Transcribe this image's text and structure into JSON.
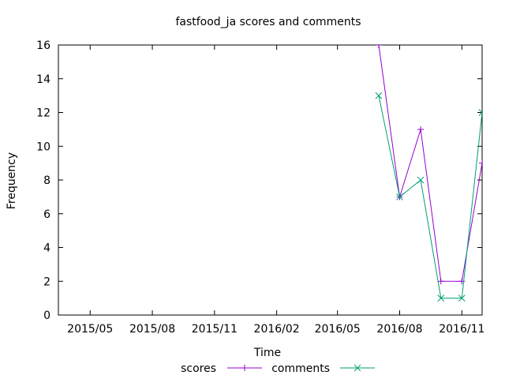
{
  "chart_data": {
    "type": "line",
    "title": "fastfood_ja scores and comments",
    "xlabel": "Time",
    "ylabel": "Frequency",
    "xlim": [
      "2015-03-15",
      "2016-12-01"
    ],
    "ylim": [
      0,
      16
    ],
    "x_tick_labels": [
      "2015/05",
      "2015/08",
      "2015/11",
      "2016/02",
      "2016/05",
      "2016/08",
      "2016/11"
    ],
    "x_tick_dates": [
      "2015-05-01",
      "2015-08-01",
      "2015-11-01",
      "2016-02-01",
      "2016-05-01",
      "2016-08-01",
      "2016-11-01"
    ],
    "y_ticks": [
      0,
      2,
      4,
      6,
      8,
      10,
      12,
      14,
      16
    ],
    "grid": false,
    "legend_position": "bottom",
    "series": [
      {
        "name": "scores",
        "color": "#9400d3",
        "marker": "plus",
        "points": [
          {
            "x": "2016-07-01",
            "y": 16
          },
          {
            "x": "2016-08-01",
            "y": 7
          },
          {
            "x": "2016-09-01",
            "y": 11
          },
          {
            "x": "2016-10-01",
            "y": 2
          },
          {
            "x": "2016-11-01",
            "y": 2
          },
          {
            "x": "2016-12-01",
            "y": 9
          }
        ]
      },
      {
        "name": "comments",
        "color": "#009e73",
        "marker": "x",
        "points": [
          {
            "x": "2016-07-01",
            "y": 13
          },
          {
            "x": "2016-08-01",
            "y": 7
          },
          {
            "x": "2016-09-01",
            "y": 8
          },
          {
            "x": "2016-10-01",
            "y": 1
          },
          {
            "x": "2016-11-01",
            "y": 1
          },
          {
            "x": "2016-12-01",
            "y": 12
          }
        ]
      }
    ]
  }
}
